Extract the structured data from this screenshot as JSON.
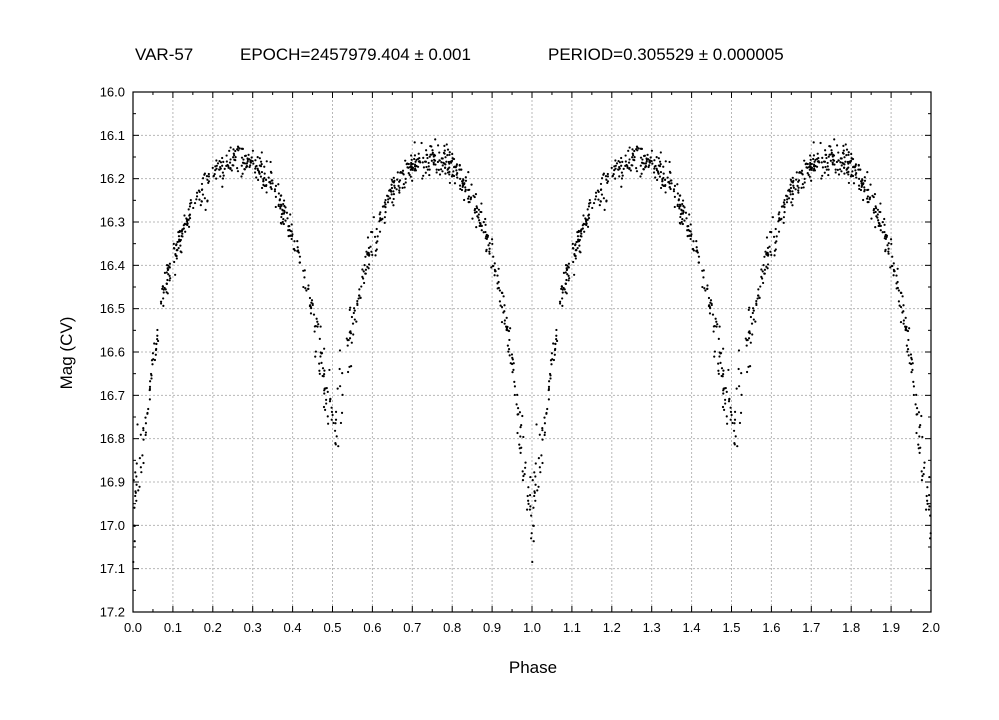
{
  "chart_data": {
    "type": "scatter",
    "title_object": "VAR-57",
    "title_epoch": "EPOCH=2457979.404 ± 0.001",
    "title_period": "PERIOD=0.305529 ± 0.000005",
    "xlabel": "Phase",
    "ylabel": "Mag (CV)",
    "xlim": [
      0.0,
      2.0
    ],
    "ylim": [
      16.0,
      17.2
    ],
    "y_inverted": true,
    "grid": true,
    "x_ticks": [
      "0.0",
      "0.1",
      "0.2",
      "0.3",
      "0.4",
      "0.5",
      "0.6",
      "0.7",
      "0.8",
      "0.9",
      "1.0",
      "1.1",
      "1.2",
      "1.3",
      "1.4",
      "1.5",
      "1.6",
      "1.7",
      "1.8",
      "1.9",
      "2.0"
    ],
    "y_ticks": [
      "16.0",
      "16.1",
      "16.2",
      "16.3",
      "16.4",
      "16.5",
      "16.6",
      "16.7",
      "16.8",
      "16.9",
      "17.0",
      "17.1",
      "17.2"
    ],
    "marker_color": "#000000",
    "curve_shape": {
      "phase": [
        0.0,
        0.02,
        0.05,
        0.08,
        0.1,
        0.15,
        0.2,
        0.25,
        0.3,
        0.35,
        0.4,
        0.43,
        0.45,
        0.47,
        0.5,
        0.53,
        0.55,
        0.57,
        0.6,
        0.65,
        0.7,
        0.75,
        0.8,
        0.85,
        0.9,
        0.93,
        0.95,
        0.97,
        1.0
      ],
      "mag": [
        16.98,
        16.85,
        16.62,
        16.45,
        16.38,
        16.26,
        16.19,
        16.15,
        16.16,
        16.21,
        16.33,
        16.42,
        16.5,
        16.62,
        16.78,
        16.65,
        16.54,
        16.45,
        16.35,
        16.23,
        16.17,
        16.15,
        16.17,
        16.24,
        16.38,
        16.5,
        16.62,
        16.8,
        17.0
      ]
    }
  }
}
